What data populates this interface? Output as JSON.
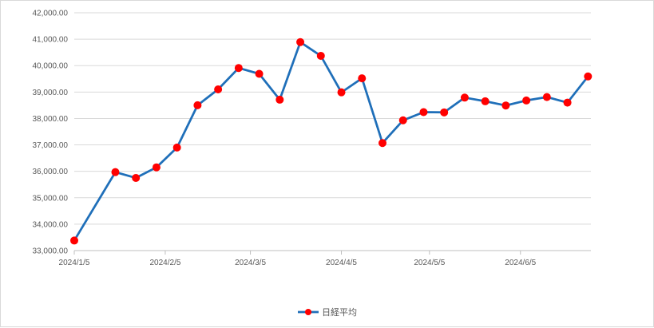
{
  "chart_data": {
    "type": "line",
    "title": "",
    "xlabel": "",
    "ylabel": "",
    "x_tick_labels": [
      "2024/1/5",
      "2024/2/5",
      "2024/3/5",
      "2024/4/5",
      "2024/5/5",
      "2024/6/5"
    ],
    "y_tick_labels": [
      "33,000.00",
      "34,000.00",
      "35,000.00",
      "36,000.00",
      "37,000.00",
      "38,000.00",
      "39,000.00",
      "40,000.00",
      "41,000.00",
      "42,000.00"
    ],
    "ylim": [
      33000,
      42000
    ],
    "xlim": [
      "2024/1/5",
      "2024/6/29"
    ],
    "grid": true,
    "legend_position": "bottom",
    "series": [
      {
        "name": "日経平均",
        "color": "#1f6fb9",
        "marker_color": "#ff0000",
        "points": [
          {
            "x": "2024/1/5",
            "y": 33380
          },
          {
            "x": "2024/1/19",
            "y": 35970
          },
          {
            "x": "2024/1/26",
            "y": 35750
          },
          {
            "x": "2024/2/2",
            "y": 36150
          },
          {
            "x": "2024/2/9",
            "y": 36900
          },
          {
            "x": "2024/2/16",
            "y": 38500
          },
          {
            "x": "2024/2/23",
            "y": 39100
          },
          {
            "x": "2024/3/1",
            "y": 39910
          },
          {
            "x": "2024/3/8",
            "y": 39690
          },
          {
            "x": "2024/3/15",
            "y": 38710
          },
          {
            "x": "2024/3/22",
            "y": 40890
          },
          {
            "x": "2024/3/29",
            "y": 40370
          },
          {
            "x": "2024/4/5",
            "y": 38990
          },
          {
            "x": "2024/4/12",
            "y": 39520
          },
          {
            "x": "2024/4/19",
            "y": 37070
          },
          {
            "x": "2024/4/26",
            "y": 37930
          },
          {
            "x": "2024/5/3",
            "y": 38240
          },
          {
            "x": "2024/5/10",
            "y": 38230
          },
          {
            "x": "2024/5/17",
            "y": 38790
          },
          {
            "x": "2024/5/24",
            "y": 38650
          },
          {
            "x": "2024/5/31",
            "y": 38490
          },
          {
            "x": "2024/6/7",
            "y": 38680
          },
          {
            "x": "2024/6/14",
            "y": 38810
          },
          {
            "x": "2024/6/21",
            "y": 38600
          },
          {
            "x": "2024/6/28",
            "y": 39590
          }
        ]
      }
    ]
  }
}
